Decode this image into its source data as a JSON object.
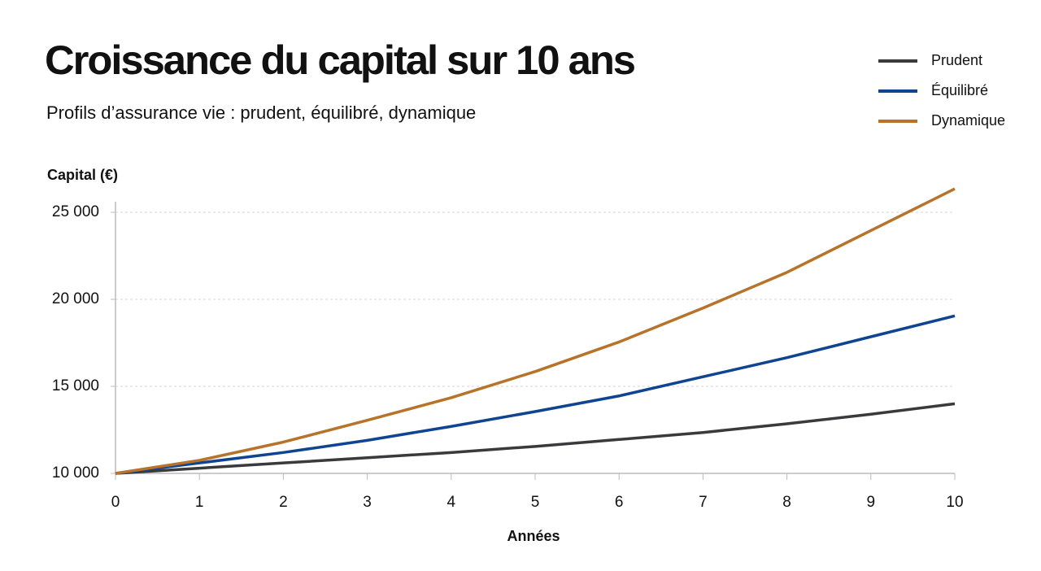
{
  "chart_data": {
    "type": "line",
    "title": "Croissance du capital sur 10 ans",
    "subtitle": "Profils d’assurance vie : prudent, équilibré, dynamique",
    "y_label": "Capital (€)",
    "x_label": "Années",
    "x": [
      0,
      1,
      2,
      3,
      4,
      5,
      6,
      7,
      8,
      9,
      10
    ],
    "series": [
      {
        "name": "Prudent",
        "color": "#3a3a3c",
        "values": [
          10000,
          10300,
          10600,
          10900,
          11200,
          11550,
          11950,
          12350,
          12850,
          13400,
          14000
        ]
      },
      {
        "name": "Équilibré",
        "color": "#0f4492",
        "values": [
          10000,
          10600,
          11200,
          11900,
          12700,
          13550,
          14450,
          15550,
          16650,
          17850,
          19050
        ]
      },
      {
        "name": "Dynamique",
        "color": "#b8732a",
        "values": [
          10000,
          10750,
          11800,
          13050,
          14350,
          15850,
          17550,
          19500,
          21550,
          23950,
          26350
        ]
      }
    ],
    "xlim": [
      0,
      10
    ],
    "xticks": [
      0,
      1,
      2,
      3,
      4,
      5,
      6,
      7,
      8,
      9,
      10
    ],
    "ylim": [
      10000,
      26500
    ],
    "yticks": [
      {
        "value": 10000,
        "label": "10 000"
      },
      {
        "value": 15000,
        "label": "15 000"
      },
      {
        "value": 20000,
        "label": "20 000"
      },
      {
        "value": 25000,
        "label": "25 000"
      }
    ],
    "grid": true,
    "legend_position": "top-right"
  }
}
